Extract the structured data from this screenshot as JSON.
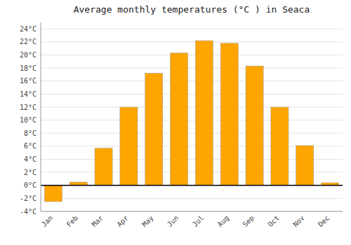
{
  "chart_data": {
    "type": "bar",
    "title": "Average monthly temperatures (°C ) in Seaca",
    "categories": [
      "Jan",
      "Feb",
      "Mar",
      "Apr",
      "May",
      "Jun",
      "Jul",
      "Aug",
      "Sep",
      "Oct",
      "Nov",
      "Dec"
    ],
    "values": [
      -2.5,
      0.5,
      5.7,
      12.0,
      17.2,
      20.3,
      22.2,
      21.8,
      18.3,
      12.0,
      6.1,
      0.4
    ],
    "color": "#FFA500",
    "ylim": [
      -4,
      25
    ],
    "yticks": [
      {
        "value": -4,
        "label": "-4°C"
      },
      {
        "value": -2,
        "label": "-2°C"
      },
      {
        "value": 0,
        "label": "0°C"
      },
      {
        "value": 2,
        "label": "2°C"
      },
      {
        "value": 4,
        "label": "4°C"
      },
      {
        "value": 6,
        "label": "6°C"
      },
      {
        "value": 8,
        "label": "8°C"
      },
      {
        "value": 10,
        "label": "10°C"
      },
      {
        "value": 12,
        "label": "12°C"
      },
      {
        "value": 14,
        "label": "14°C"
      },
      {
        "value": 16,
        "label": "16°C"
      },
      {
        "value": 18,
        "label": "18°C"
      },
      {
        "value": 20,
        "label": "20°C"
      },
      {
        "value": 22,
        "label": "22°C"
      },
      {
        "value": 24,
        "label": "24°C"
      }
    ],
    "grid": true
  }
}
